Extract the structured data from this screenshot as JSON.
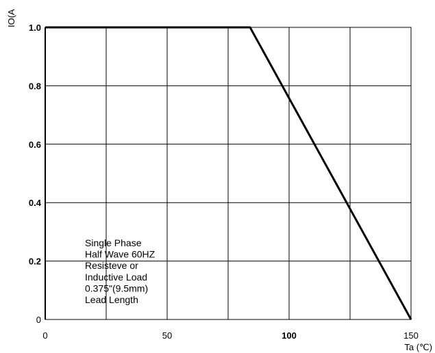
{
  "chart_data": {
    "type": "line",
    "xlabel": "Ta (℃)",
    "ylabel": "IO(A",
    "xlim": [
      0,
      150
    ],
    "ylim": [
      0,
      1.0
    ],
    "x_ticks": [
      {
        "value": 0,
        "label": "0",
        "bold": false
      },
      {
        "value": 50,
        "label": "50",
        "bold": false
      },
      {
        "value": 100,
        "label": "100",
        "bold": true
      },
      {
        "value": 150,
        "label": "150",
        "bold": false
      }
    ],
    "y_ticks": [
      {
        "value": 0,
        "label": "0",
        "bold": false
      },
      {
        "value": 0.2,
        "label": "0.2",
        "bold": true
      },
      {
        "value": 0.4,
        "label": "0.4",
        "bold": true
      },
      {
        "value": 0.6,
        "label": "0.6",
        "bold": true
      },
      {
        "value": 0.8,
        "label": "0.8",
        "bold": true
      },
      {
        "value": 1.0,
        "label": "1.0",
        "bold": true
      }
    ],
    "grid": true,
    "grid_x_step": 25,
    "grid_y_step": 0.2,
    "series": [
      {
        "x": [
          0,
          84,
          150
        ],
        "y": [
          1.0,
          1.0,
          0
        ],
        "color": "#000000"
      }
    ],
    "annotation": [
      "Single Phase",
      "Half Wave 60HZ",
      "Resisteve or",
      "Inductive Load",
      "0.375\"(9.5mm)",
      "Lead Length"
    ]
  }
}
